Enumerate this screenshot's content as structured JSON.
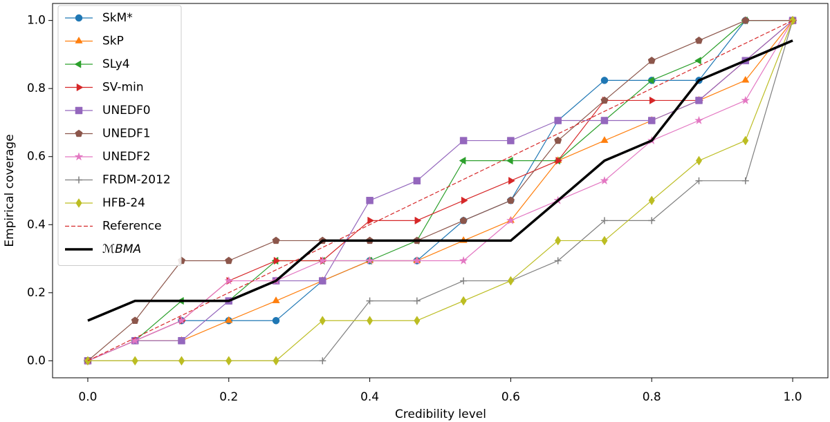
{
  "chart_data": {
    "type": "line",
    "xlabel": "Credibility level",
    "ylabel": "Empirical coverage",
    "x": [
      0,
      0.067,
      0.133,
      0.2,
      0.267,
      0.333,
      0.4,
      0.467,
      0.533,
      0.6,
      0.667,
      0.733,
      0.8,
      0.867,
      0.933,
      1
    ],
    "series": [
      {
        "name": "SkM*",
        "color": "#1f77b4",
        "marker": "circle",
        "values": [
          0,
          0.059,
          0.118,
          0.118,
          0.118,
          0.235,
          0.294,
          0.294,
          0.412,
          0.471,
          0.706,
          0.824,
          0.824,
          0.824,
          1,
          1
        ]
      },
      {
        "name": "SkP",
        "color": "#ff7f0e",
        "marker": "triangle-up",
        "values": [
          0,
          0.059,
          0.059,
          0.118,
          0.176,
          0.235,
          0.294,
          0.294,
          0.353,
          0.412,
          0.588,
          0.647,
          0.706,
          0.765,
          0.824,
          1
        ]
      },
      {
        "name": "SLy4",
        "color": "#2ca02c",
        "marker": "triangle-left",
        "values": [
          0,
          0.059,
          0.176,
          0.176,
          0.294,
          0.294,
          0.294,
          0.353,
          0.588,
          0.588,
          0.588,
          0.706,
          0.824,
          0.882,
          1,
          1
        ]
      },
      {
        "name": "SV-min",
        "color": "#d62728",
        "marker": "triangle-right",
        "values": [
          0,
          0.059,
          0.118,
          0.235,
          0.294,
          0.294,
          0.412,
          0.412,
          0.471,
          0.529,
          0.588,
          0.765,
          0.765,
          0.765,
          0.882,
          1
        ]
      },
      {
        "name": "UNEDF0",
        "color": "#9467bd",
        "marker": "square",
        "values": [
          0,
          0.059,
          0.059,
          0.176,
          0.235,
          0.235,
          0.471,
          0.529,
          0.647,
          0.647,
          0.706,
          0.706,
          0.706,
          0.765,
          0.882,
          1
        ]
      },
      {
        "name": "UNEDF1",
        "color": "#8c564b",
        "marker": "pentagon",
        "values": [
          0,
          0.118,
          0.294,
          0.294,
          0.353,
          0.353,
          0.353,
          0.353,
          0.412,
          0.471,
          0.647,
          0.765,
          0.882,
          0.941,
          1,
          1
        ]
      },
      {
        "name": "UNEDF2",
        "color": "#e377c2",
        "marker": "star",
        "values": [
          0,
          0.059,
          0.118,
          0.235,
          0.235,
          0.294,
          0.294,
          0.294,
          0.294,
          0.412,
          0.471,
          0.529,
          0.647,
          0.706,
          0.765,
          1
        ]
      },
      {
        "name": "FRDM-2012",
        "color": "#7f7f7f",
        "marker": "plus",
        "values": [
          0,
          0,
          0,
          0,
          0,
          0,
          0.176,
          0.176,
          0.235,
          0.235,
          0.294,
          0.412,
          0.412,
          0.529,
          0.529,
          1
        ]
      },
      {
        "name": "HFB-24",
        "color": "#bcbd22",
        "marker": "diamond",
        "values": [
          0,
          0,
          0,
          0,
          0,
          0.118,
          0.118,
          0.118,
          0.176,
          0.235,
          0.353,
          0.353,
          0.471,
          0.588,
          0.647,
          1
        ]
      },
      {
        "name": "Reference",
        "color": "#d62728",
        "dash": true,
        "x": [
          0,
          1
        ],
        "values": [
          0,
          1
        ]
      },
      {
        "name": "ℳBMA",
        "color": "#000000",
        "width": 3.5,
        "values": [
          0.118,
          0.176,
          0.176,
          0.176,
          0.235,
          0.353,
          0.353,
          0.353,
          0.353,
          0.353,
          0.471,
          0.588,
          0.647,
          0.824,
          0.882,
          0.941
        ]
      }
    ],
    "xlim": [
      -0.05,
      1.05
    ],
    "ylim": [
      -0.05,
      1.05
    ],
    "xticks": [
      {
        "value": 0,
        "label": "0.0"
      },
      {
        "value": 0.2,
        "label": "0.2"
      },
      {
        "value": 0.4,
        "label": "0.4"
      },
      {
        "value": 0.6,
        "label": "0.6"
      },
      {
        "value": 0.8,
        "label": "0.8"
      },
      {
        "value": 1,
        "label": "1.0"
      }
    ],
    "yticks": [
      {
        "value": 0,
        "label": "0.0"
      },
      {
        "value": 0.2,
        "label": "0.2"
      },
      {
        "value": 0.4,
        "label": "0.4"
      },
      {
        "value": 0.6,
        "label": "0.6"
      },
      {
        "value": 0.8,
        "label": "0.8"
      },
      {
        "value": 1,
        "label": "1.0"
      }
    ],
    "grid": false,
    "legend": "upper left"
  }
}
